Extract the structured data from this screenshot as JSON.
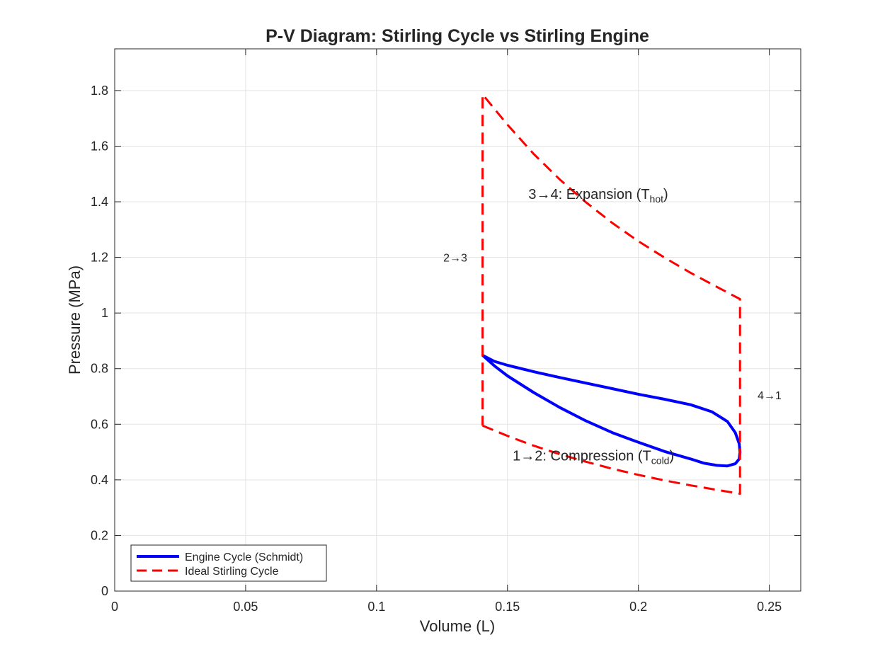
{
  "chart_data": {
    "type": "line",
    "title": "P-V Diagram: Stirling Cycle vs Stirling Engine",
    "xlabel": "Volume (L)",
    "ylabel": "Pressure (MPa)",
    "xlim": [
      0,
      0.262
    ],
    "ylim": [
      0,
      1.95
    ],
    "x_ticks": [
      0,
      0.05,
      0.1,
      0.15,
      0.2,
      0.25
    ],
    "x_tick_labels": [
      "0",
      "0.05",
      "0.1",
      "0.15",
      "0.2",
      "0.25"
    ],
    "y_ticks": [
      0,
      0.2,
      0.4,
      0.6,
      0.8,
      1.0,
      1.2,
      1.4,
      1.6,
      1.8
    ],
    "y_tick_labels": [
      "0",
      "0.2",
      "0.4",
      "0.6",
      "0.8",
      "1",
      "1.2",
      "1.4",
      "1.6",
      "1.8"
    ],
    "grid": true,
    "legend_position": "bottom-left",
    "series": [
      {
        "name": "Engine Cycle (Schmidt)",
        "color": "#0000ff",
        "style": "solid",
        "x": [
          0.1405,
          0.145,
          0.15,
          0.16,
          0.17,
          0.18,
          0.19,
          0.2,
          0.21,
          0.22,
          0.228,
          0.234,
          0.237,
          0.2385,
          0.2388,
          0.2385,
          0.237,
          0.234,
          0.23,
          0.225,
          0.22,
          0.21,
          0.2,
          0.19,
          0.18,
          0.17,
          0.16,
          0.15,
          0.145,
          0.1405
        ],
        "y": [
          0.848,
          0.826,
          0.812,
          0.789,
          0.768,
          0.748,
          0.728,
          0.708,
          0.69,
          0.67,
          0.645,
          0.61,
          0.57,
          0.53,
          0.5,
          0.475,
          0.458,
          0.45,
          0.452,
          0.46,
          0.475,
          0.502,
          0.535,
          0.57,
          0.612,
          0.66,
          0.714,
          0.774,
          0.81,
          0.848
        ]
      },
      {
        "name": "Ideal Stirling Cycle",
        "color": "#ff0000",
        "style": "dashed",
        "x": [
          0.1405,
          0.15,
          0.16,
          0.17,
          0.18,
          0.19,
          0.2,
          0.21,
          0.22,
          0.23,
          0.2388,
          0.2388,
          0.23,
          0.22,
          0.21,
          0.2,
          0.19,
          0.18,
          0.17,
          0.16,
          0.15,
          0.1405,
          0.1405
        ],
        "y": [
          0.595,
          0.558,
          0.523,
          0.492,
          0.465,
          0.44,
          0.418,
          0.398,
          0.38,
          0.364,
          0.35,
          1.05,
          1.094,
          1.144,
          1.199,
          1.258,
          1.324,
          1.398,
          1.48,
          1.572,
          1.677,
          1.786,
          0.595
        ]
      }
    ],
    "annotations": [
      {
        "text": "3→4:  Expansion  (T",
        "sub": "hot",
        "tail": ")",
        "x": 0.158,
        "y": 1.41
      },
      {
        "text": "1→2:  Compression  (T",
        "sub": "cold",
        "tail": ")",
        "x": 0.152,
        "y": 0.47
      },
      {
        "text": "2→3",
        "x": 0.1255,
        "y": 1.185
      },
      {
        "text": "4→1",
        "x": 0.2455,
        "y": 0.69
      }
    ]
  }
}
